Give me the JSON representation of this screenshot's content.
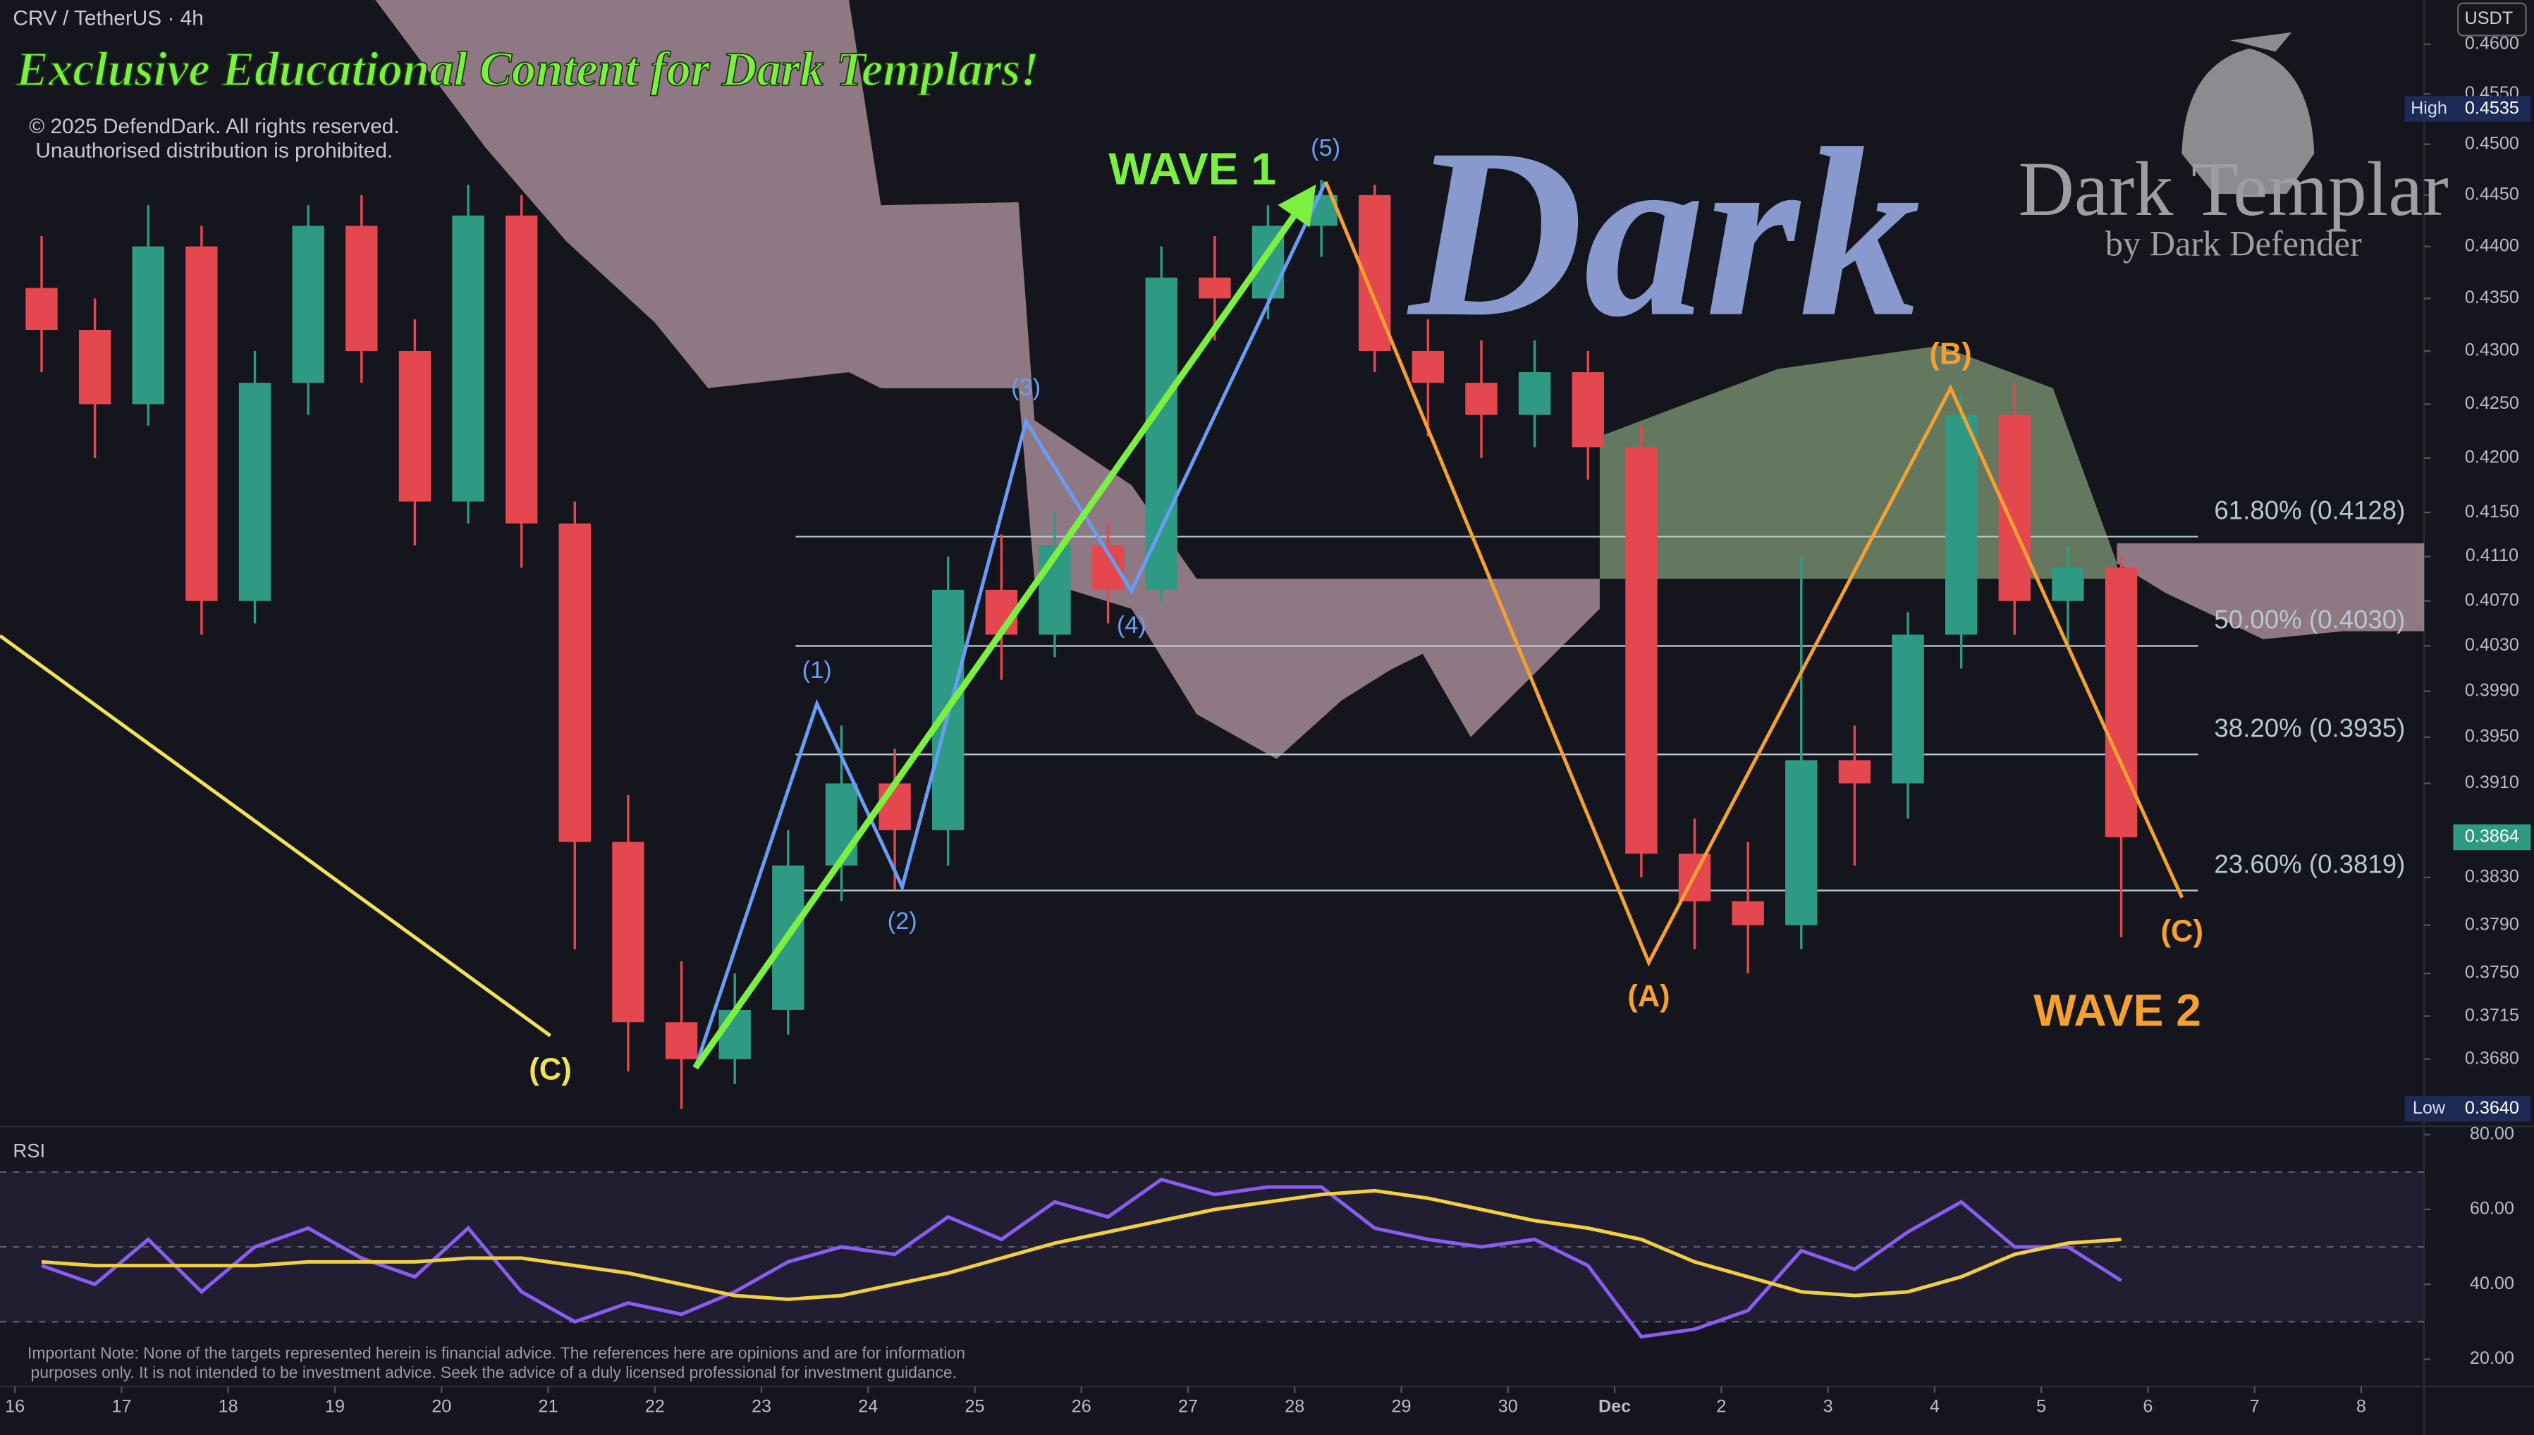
{
  "header": {
    "symbol": "CRV / TetherUS · 4h",
    "currency": "USDT",
    "banner": "Exclusive Educational Content for Dark Templars!",
    "copyright": "© 2025 DefendDark. All rights reserved.",
    "notice": "Unauthorised distribution is prohibited.",
    "watermark": "Dark",
    "logo_title": "Dark Templar",
    "logo_subtitle": "by Dark Defender",
    "disclaimer": [
      "Important Note: None of the targets represented herein is financial advice. The references here are opinions and are for information",
      "purposes only. It is not intended to be investment advice. Seek the advice of a duly licensed professional for investment guidance."
    ]
  },
  "chart_data": [
    {
      "type": "candlestick",
      "x": [
        0.25,
        0.75,
        1.25,
        1.75,
        2.25,
        2.75,
        3.25,
        3.75,
        4.25,
        4.75,
        5.25,
        5.75,
        6.25,
        6.75,
        7.25,
        7.75,
        8.25,
        8.75,
        9.25,
        9.75,
        10.25,
        10.75,
        11.25,
        11.75,
        12.25,
        12.75,
        13.25,
        13.75,
        14.25,
        14.75,
        15.25,
        15.75,
        16.25,
        16.75,
        17.25,
        17.75,
        18.25,
        18.75,
        19.25,
        19.75
      ],
      "open": [
        0.436,
        0.432,
        0.425,
        0.44,
        0.407,
        0.427,
        0.442,
        0.43,
        0.416,
        0.443,
        0.414,
        0.386,
        0.371,
        0.368,
        0.372,
        0.384,
        0.391,
        0.387,
        0.408,
        0.404,
        0.412,
        0.408,
        0.437,
        0.435,
        0.442,
        0.445,
        0.43,
        0.427,
        0.424,
        0.428,
        0.421,
        0.385,
        0.381,
        0.379,
        0.393,
        0.391,
        0.404,
        0.424,
        0.407,
        0.41
      ],
      "high": [
        0.441,
        0.435,
        0.444,
        0.442,
        0.43,
        0.444,
        0.445,
        0.433,
        0.446,
        0.445,
        0.416,
        0.39,
        0.376,
        0.375,
        0.387,
        0.396,
        0.394,
        0.411,
        0.413,
        0.415,
        0.414,
        0.44,
        0.441,
        0.444,
        0.4465,
        0.446,
        0.433,
        0.431,
        0.431,
        0.43,
        0.423,
        0.388,
        0.386,
        0.411,
        0.396,
        0.406,
        0.426,
        0.427,
        0.412,
        0.411
      ],
      "low": [
        0.428,
        0.42,
        0.423,
        0.404,
        0.405,
        0.424,
        0.427,
        0.412,
        0.414,
        0.41,
        0.377,
        0.367,
        0.364,
        0.366,
        0.37,
        0.381,
        0.382,
        0.384,
        0.4,
        0.402,
        0.405,
        0.407,
        0.431,
        0.433,
        0.439,
        0.428,
        0.422,
        0.42,
        0.421,
        0.418,
        0.383,
        0.377,
        0.375,
        0.377,
        0.384,
        0.388,
        0.401,
        0.404,
        0.403,
        0.378
      ],
      "close": [
        0.432,
        0.425,
        0.44,
        0.407,
        0.427,
        0.442,
        0.43,
        0.416,
        0.443,
        0.414,
        0.386,
        0.371,
        0.368,
        0.372,
        0.384,
        0.391,
        0.387,
        0.408,
        0.404,
        0.412,
        0.408,
        0.437,
        0.435,
        0.442,
        0.445,
        0.43,
        0.427,
        0.424,
        0.428,
        0.421,
        0.385,
        0.381,
        0.379,
        0.393,
        0.391,
        0.404,
        0.424,
        0.407,
        0.41,
        0.3864
      ],
      "up_color": "#2f9a84",
      "down_color": "#e5474f",
      "xlim": [
        -0.14,
        22.59
      ],
      "xticks": [
        {
          "value": 0,
          "label": "16"
        },
        {
          "value": 1,
          "label": "17"
        },
        {
          "value": 2,
          "label": "18"
        },
        {
          "value": 3,
          "label": "19"
        },
        {
          "value": 4,
          "label": "20"
        },
        {
          "value": 5,
          "label": "21"
        },
        {
          "value": 6,
          "label": "22"
        },
        {
          "value": 7,
          "label": "23"
        },
        {
          "value": 8,
          "label": "24"
        },
        {
          "value": 9,
          "label": "25"
        },
        {
          "value": 10,
          "label": "26"
        },
        {
          "value": 11,
          "label": "27"
        },
        {
          "value": 12,
          "label": "28"
        },
        {
          "value": 13,
          "label": "29"
        },
        {
          "value": 14,
          "label": "30"
        },
        {
          "value": 15,
          "label": "Dec"
        },
        {
          "value": 16,
          "label": "2"
        },
        {
          "value": 17,
          "label": "3"
        },
        {
          "value": 18,
          "label": "4"
        },
        {
          "value": 19,
          "label": "5"
        },
        {
          "value": 20,
          "label": "6"
        },
        {
          "value": 21,
          "label": "7"
        },
        {
          "value": 22,
          "label": "8"
        }
      ],
      "ylim": [
        0.3626,
        0.4645
      ],
      "log_scale": true,
      "yticks": [
        {
          "value": 0.46,
          "label": "0.4600"
        },
        {
          "value": 0.455,
          "label": "0.4550"
        },
        {
          "value": 0.45,
          "label": "0.4500"
        },
        {
          "value": 0.445,
          "label": "0.4450"
        },
        {
          "value": 0.44,
          "label": "0.4400"
        },
        {
          "value": 0.435,
          "label": "0.4350"
        },
        {
          "value": 0.43,
          "label": "0.4300"
        },
        {
          "value": 0.425,
          "label": "0.4250"
        },
        {
          "value": 0.42,
          "label": "0.4200"
        },
        {
          "value": 0.415,
          "label": "0.4150"
        },
        {
          "value": 0.411,
          "label": "0.4110"
        },
        {
          "value": 0.407,
          "label": "0.4070"
        },
        {
          "value": 0.403,
          "label": "0.4030"
        },
        {
          "value": 0.399,
          "label": "0.3990"
        },
        {
          "value": 0.395,
          "label": "0.3950"
        },
        {
          "value": 0.391,
          "label": "0.3910"
        },
        {
          "value": 0.383,
          "label": "0.3830"
        },
        {
          "value": 0.379,
          "label": "0.3790"
        },
        {
          "value": 0.375,
          "label": "0.3750"
        },
        {
          "value": 0.3715,
          "label": "0.3715"
        },
        {
          "value": 0.368,
          "label": "0.3680"
        }
      ],
      "high_marker": {
        "name": "High",
        "value": 0.4535,
        "label": "0.4535"
      },
      "low_marker": {
        "name": "Low",
        "value": 0.364,
        "label": "0.3640"
      },
      "last_price": {
        "value": 0.3864,
        "label": "0.3864"
      },
      "fib_levels": {
        "x_range": [
          7.32,
          20.47
        ],
        "values": [
          0.4128,
          0.403,
          0.3935,
          0.3819
        ],
        "value_labels": [
          "61.80% (0.4128)",
          "50.00% (0.4030)",
          "38.20% (0.3935)",
          "23.60% (0.3819)"
        ],
        "color": "#b9c7cc"
      },
      "clouds": [
        {
          "color": "#b79aa6",
          "x": [
            3.38,
            4.41,
            5.17,
            6.0,
            6.5,
            7.82,
            8.12,
            9.41,
            9.56,
            10.47,
            11.08,
            11.83,
            12.44,
            12.9,
            13.2,
            13.65,
            14.86
          ],
          "upper": [
            0.4645,
            0.4645,
            0.4645,
            0.4645,
            0.4645,
            0.4645,
            0.444,
            0.4443,
            0.4235,
            0.4175,
            0.409,
            0.409,
            0.409,
            0.409,
            0.409,
            0.409,
            0.409
          ],
          "lower": [
            0.4645,
            0.4497,
            0.4405,
            0.4327,
            0.4265,
            0.428,
            0.4265,
            0.4265,
            0.409,
            0.4063,
            0.397,
            0.3931,
            0.3982,
            0.4009,
            0.4023,
            0.395,
            0.4063
          ]
        },
        {
          "color": "#7d9a74",
          "x": [
            14.86,
            16.53,
            18.05,
            19.11,
            19.71
          ],
          "upper": [
            0.422,
            0.4283,
            0.4305,
            0.4265,
            0.4104
          ],
          "lower": [
            0.409,
            0.409,
            0.409,
            0.409,
            0.409
          ]
        },
        {
          "color": "#b79aa6",
          "x": [
            19.71,
            20.17,
            21.08,
            21.83,
            22.59
          ],
          "upper": [
            0.4122,
            0.4122,
            0.4122,
            0.4122,
            0.4122
          ],
          "lower": [
            0.4104,
            0.4077,
            0.4036,
            0.4043,
            0.4043
          ]
        }
      ],
      "lines": [
        {
          "color": "#6a9cf5",
          "x": [
            6.38,
            7.52,
            8.32,
            9.48,
            10.47,
            12.29
          ],
          "values": [
            0.3673,
            0.3979,
            0.3822,
            0.4234,
            0.4079,
            0.4463
          ],
          "labels": [
            null,
            "(1)",
            "(2)",
            "(3)",
            "(4)",
            "(5)"
          ]
        },
        {
          "name": "WAVE 2",
          "color": "#f5a030",
          "x": [
            12.29,
            15.32,
            18.15,
            20.32
          ],
          "values": [
            0.4463,
            0.3759,
            0.4265,
            0.3813
          ],
          "labels": [
            null,
            "(A)",
            "(B)",
            "(C)"
          ]
        },
        {
          "color": "#f2e25a",
          "x": [
            -0.14,
            5.02
          ],
          "values": [
            0.4039,
            0.3699
          ],
          "labels": [
            null,
            "(C)"
          ]
        },
        {
          "name": "WAVE 1",
          "color": "#7cf040",
          "arrow": true,
          "x": [
            6.38,
            12.13
          ],
          "values": [
            0.3673,
            0.445
          ],
          "labels": [
            null,
            null
          ]
        }
      ]
    },
    {
      "type": "line",
      "title": "RSI",
      "x": [
        0.25,
        0.75,
        1.25,
        1.75,
        2.25,
        2.75,
        3.25,
        3.75,
        4.25,
        4.75,
        5.25,
        5.75,
        6.25,
        6.75,
        7.25,
        7.75,
        8.25,
        8.75,
        9.25,
        9.75,
        10.25,
        10.75,
        11.25,
        11.75,
        12.25,
        12.75,
        13.25,
        13.75,
        14.25,
        14.75,
        15.25,
        15.75,
        16.25,
        16.75,
        17.25,
        17.75,
        18.25,
        18.75,
        19.25,
        19.75
      ],
      "series": [
        {
          "color": "#8a5cf0",
          "values": [
            45,
            40,
            52,
            38,
            50,
            55,
            47,
            42,
            55,
            38,
            30,
            35,
            32,
            38,
            46,
            50,
            48,
            58,
            52,
            62,
            58,
            68,
            64,
            66,
            66,
            55,
            52,
            50,
            52,
            45,
            26,
            28,
            33,
            49,
            44,
            54,
            62,
            50,
            50,
            41
          ]
        },
        {
          "color": "#f0d040",
          "values": [
            46,
            45,
            45,
            45,
            45,
            46,
            46,
            46,
            47,
            47,
            45,
            43,
            40,
            37,
            36,
            37,
            40,
            43,
            47,
            51,
            54,
            57,
            60,
            62,
            64,
            65,
            63,
            60,
            57,
            55,
            52,
            46,
            42,
            38,
            37,
            38,
            42,
            48,
            51,
            52
          ]
        }
      ],
      "xlim": [
        -0.14,
        22.59
      ],
      "ylim": [
        12.7,
        82.2
      ],
      "yticks": [
        {
          "value": 80,
          "label": "80.00"
        },
        {
          "value": 60,
          "label": "60.00"
        },
        {
          "value": 40,
          "label": "40.00"
        },
        {
          "value": 20,
          "label": "20.00"
        }
      ],
      "levels": [
        70,
        50,
        30
      ]
    }
  ]
}
